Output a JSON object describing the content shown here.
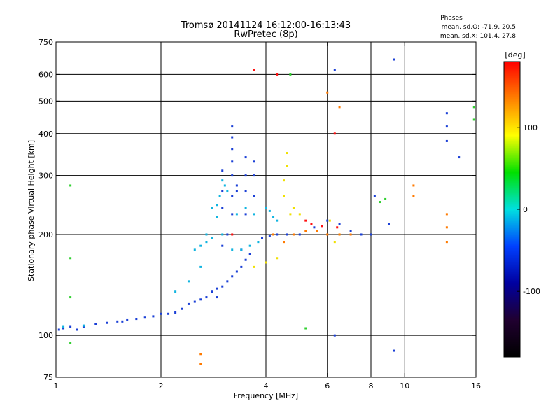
{
  "chart_data": {
    "type": "scatter",
    "title": "Tromsø 20141124 16:12:00-16:13:43",
    "subtitle": "RwPretec (8p)",
    "xlabel": "Frequency [MHz]",
    "ylabel": "Stationary phase Virtual Height [km]",
    "x_scale": "log",
    "y_scale": "log",
    "xlim": [
      1,
      16
    ],
    "ylim": [
      75,
      750
    ],
    "x_ticks": [
      1,
      2,
      4,
      6,
      8,
      10,
      16
    ],
    "y_ticks": [
      75,
      100,
      200,
      300,
      400,
      500,
      600,
      750
    ],
    "x_gridlines": [
      2,
      4,
      6,
      8,
      10
    ],
    "y_gridlines": [
      100,
      200,
      300,
      400,
      500,
      600
    ],
    "grid": true,
    "phase_info": {
      "heading": "Phases",
      "line1": "mean, sd,O: -71.9, 20.5",
      "line2": "mean, sd,X: 101.4, 27.8"
    },
    "colorbar": {
      "label": "[deg]",
      "range": [
        -180,
        180
      ],
      "ticks": [
        100,
        0,
        -100
      ],
      "colors": [
        "#ff0000",
        "#ff8000",
        "#ffff00",
        "#00e000",
        "#00e0e0",
        "#0040ff",
        "#0000a0",
        "#200030",
        "#000000"
      ]
    },
    "series": [
      {
        "color": "#1a3fd6",
        "points": [
          [
            1.02,
            104
          ],
          [
            1.05,
            105
          ],
          [
            1.1,
            106
          ],
          [
            1.15,
            104
          ],
          [
            1.2,
            106
          ],
          [
            1.3,
            108
          ],
          [
            1.4,
            109
          ],
          [
            1.5,
            110
          ],
          [
            1.55,
            110
          ],
          [
            1.6,
            111
          ],
          [
            1.7,
            112
          ],
          [
            1.8,
            113
          ],
          [
            1.9,
            114
          ],
          [
            2.0,
            116
          ],
          [
            2.1,
            116
          ],
          [
            2.2,
            117
          ],
          [
            2.3,
            120
          ],
          [
            2.4,
            124
          ],
          [
            2.5,
            126
          ],
          [
            2.6,
            128
          ],
          [
            2.7,
            130
          ],
          [
            2.8,
            135
          ],
          [
            2.9,
            138
          ],
          [
            3.0,
            140
          ],
          [
            3.1,
            145
          ],
          [
            3.2,
            150
          ],
          [
            3.3,
            155
          ],
          [
            3.4,
            160
          ],
          [
            3.5,
            168
          ],
          [
            3.6,
            175
          ],
          [
            3.2,
            230
          ],
          [
            3.2,
            260
          ],
          [
            3.2,
            300
          ],
          [
            3.2,
            330
          ],
          [
            3.2,
            360
          ],
          [
            3.2,
            390
          ],
          [
            3.2,
            420
          ],
          [
            3.5,
            230
          ],
          [
            3.5,
            270
          ],
          [
            3.5,
            300
          ],
          [
            3.5,
            340
          ],
          [
            3.7,
            260
          ],
          [
            3.7,
            300
          ],
          [
            3.7,
            330
          ],
          [
            3.0,
            240
          ],
          [
            3.0,
            270
          ],
          [
            3.0,
            310
          ],
          [
            3.3,
            270
          ],
          [
            3.3,
            280
          ],
          [
            3.9,
            195
          ],
          [
            4.1,
            198
          ],
          [
            4.3,
            200
          ],
          [
            4.6,
            200
          ],
          [
            5.0,
            200
          ],
          [
            5.5,
            210
          ],
          [
            6.0,
            220
          ],
          [
            6.5,
            215
          ],
          [
            7.0,
            205
          ],
          [
            7.5,
            200
          ],
          [
            8.0,
            200
          ],
          [
            8.2,
            260
          ],
          [
            9.0,
            215
          ],
          [
            9.3,
            665
          ],
          [
            9.3,
            90
          ],
          [
            13.2,
            380
          ],
          [
            13.2,
            420
          ],
          [
            13.2,
            460
          ],
          [
            14.3,
            340
          ],
          [
            6.3,
            620
          ],
          [
            6.3,
            100
          ],
          [
            2.9,
            130
          ],
          [
            3.1,
            200
          ],
          [
            3.4,
            180
          ],
          [
            3.0,
            185
          ]
        ]
      },
      {
        "color": "#10b4e0",
        "points": [
          [
            1.05,
            106
          ],
          [
            1.2,
            107
          ],
          [
            2.5,
            180
          ],
          [
            2.6,
            185
          ],
          [
            2.7,
            190
          ],
          [
            2.8,
            195
          ],
          [
            2.9,
            245
          ],
          [
            2.95,
            260
          ],
          [
            3.0,
            290
          ],
          [
            3.05,
            280
          ],
          [
            3.1,
            270
          ],
          [
            3.0,
            200
          ],
          [
            3.2,
            180
          ],
          [
            3.4,
            180
          ],
          [
            3.6,
            185
          ],
          [
            3.8,
            190
          ],
          [
            4.0,
            240
          ],
          [
            4.1,
            235
          ],
          [
            4.2,
            225
          ],
          [
            4.3,
            220
          ],
          [
            2.7,
            200
          ],
          [
            2.8,
            240
          ],
          [
            2.9,
            225
          ],
          [
            3.3,
            230
          ],
          [
            3.5,
            240
          ],
          [
            3.7,
            230
          ],
          [
            2.2,
            135
          ],
          [
            2.4,
            145
          ],
          [
            2.6,
            160
          ]
        ]
      },
      {
        "color": "#f0e000",
        "points": [
          [
            4.5,
            260
          ],
          [
            4.5,
            290
          ],
          [
            4.6,
            320
          ],
          [
            4.6,
            350
          ],
          [
            4.7,
            230
          ],
          [
            4.8,
            240
          ],
          [
            5.0,
            230
          ],
          [
            3.7,
            160
          ],
          [
            4.0,
            165
          ],
          [
            4.3,
            170
          ],
          [
            4.8,
            240
          ],
          [
            6.1,
            220
          ],
          [
            6.3,
            190
          ],
          [
            6.5,
            200
          ]
        ]
      },
      {
        "color": "#ff7a00",
        "points": [
          [
            4.2,
            200
          ],
          [
            4.5,
            190
          ],
          [
            4.8,
            200
          ],
          [
            5.2,
            205
          ],
          [
            5.6,
            205
          ],
          [
            6.0,
            200
          ],
          [
            6.5,
            200
          ],
          [
            7.0,
            200
          ],
          [
            2.6,
            88
          ],
          [
            2.6,
            82
          ],
          [
            10.6,
            260
          ],
          [
            10.6,
            280
          ],
          [
            13.2,
            230
          ],
          [
            13.2,
            210
          ],
          [
            13.2,
            190
          ],
          [
            6.5,
            480
          ],
          [
            6.0,
            530
          ]
        ]
      },
      {
        "color": "#ff1010",
        "points": [
          [
            5.2,
            220
          ],
          [
            5.4,
            215
          ],
          [
            5.8,
            212
          ],
          [
            6.4,
            210
          ],
          [
            3.7,
            620
          ],
          [
            4.3,
            600
          ],
          [
            6.3,
            400
          ],
          [
            3.2,
            200
          ]
        ]
      },
      {
        "color": "#30d030",
        "points": [
          [
            1.1,
            95
          ],
          [
            1.1,
            130
          ],
          [
            1.1,
            170
          ],
          [
            1.1,
            280
          ],
          [
            8.5,
            250
          ],
          [
            8.8,
            255
          ],
          [
            15.8,
            480
          ],
          [
            15.8,
            440
          ],
          [
            4.7,
            600
          ],
          [
            5.2,
            105
          ]
        ]
      }
    ]
  }
}
